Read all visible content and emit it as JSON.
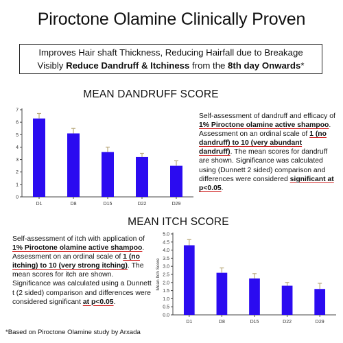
{
  "header": {
    "title": "Piroctone Olamine Clinically Proven",
    "line1": "Improves Hair shaft Thickness, Reducing Hairfall due to Breakage",
    "line2_pre": "Visibly ",
    "line2_bold1": "Reduce Dandruff & Itchiness",
    "line2_mid": " from the ",
    "line2_bold2": "8th day Onwards",
    "line2_post": "*"
  },
  "dandruff": {
    "heading": "MEAN DANDRUFF SCORE",
    "desc": {
      "t1": "Self-assessment of dandruff and efficacy of ",
      "u1": "1% Piroctone olamine active shampoo",
      "t2": ". Assessment on an ordinal scale of ",
      "u2": "1 (no dandruff) to 10 (very abundant dandruff)",
      "t3": ". The mean scores for dandruff are shown. Significance was calculated using (Dunnett 2 sided) comparison and differences were considered ",
      "u3": "significant at p<0.05",
      "t4": "."
    }
  },
  "itch": {
    "heading": "MEAN ITCH SCORE",
    "desc": {
      "t1": "Self-assessment of itch with application of ",
      "u1": "1% Piroctone olamine active shampoo",
      "t2": ". Assessment on an ordinal scale of ",
      "u2": "1 (no itching) to 10 (very strong itching)",
      "t3": ". The mean scores for itch are shown. Significance was calculated using a Dunnett t (2 sided) comparison and differences were considered significant ",
      "u3": "at p<0.05",
      "t4": "."
    }
  },
  "footnote": "*Based on Piroctone Olamine study by Arxada",
  "colors": {
    "bar": "#2b0bf0",
    "error": "#b8a87a",
    "axis": "#444444",
    "underline": "#d02020"
  },
  "chart_data": [
    {
      "type": "bar",
      "title": "MEAN DANDRUFF SCORE",
      "categories": [
        "D1",
        "D8",
        "D15",
        "D22",
        "D29"
      ],
      "values": [
        6.3,
        5.1,
        3.6,
        3.2,
        2.5
      ],
      "errors": [
        0.4,
        0.4,
        0.4,
        0.3,
        0.4
      ],
      "yticks": [
        "0",
        "1",
        "2",
        "3",
        "4",
        "5",
        "6",
        "7"
      ],
      "ylim": [
        0,
        7
      ],
      "xlabel": "",
      "ylabel": ""
    },
    {
      "type": "bar",
      "title": "MEAN ITCH SCORE",
      "categories": [
        "D1",
        "D8",
        "D15",
        "D22",
        "D29"
      ],
      "values": [
        4.3,
        2.6,
        2.25,
        1.8,
        1.6
      ],
      "errors": [
        0.35,
        0.3,
        0.3,
        0.2,
        0.35
      ],
      "yticks": [
        "0.0",
        "0.5",
        "1.0",
        "1.5",
        "2.0",
        "2.5",
        "3.0",
        "3.5",
        "4.0",
        "4.5",
        "5.0"
      ],
      "ylim": [
        0,
        5
      ],
      "xlabel": "",
      "ylabel": "Mean Itch Score"
    }
  ]
}
